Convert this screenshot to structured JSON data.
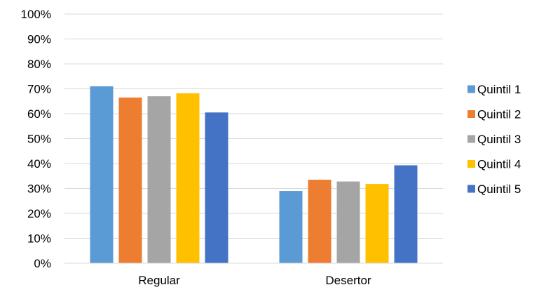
{
  "chart_data": {
    "type": "bar",
    "categories": [
      "Regular",
      "Desertor"
    ],
    "series": [
      {
        "name": "Quintil 1",
        "color": "#5B9BD5",
        "values": [
          71.0,
          29.0
        ]
      },
      {
        "name": "Quintil 2",
        "color": "#ED7D31",
        "values": [
          66.5,
          33.5
        ]
      },
      {
        "name": "Quintil 3",
        "color": "#A5A5A5",
        "values": [
          67.0,
          32.8
        ]
      },
      {
        "name": "Quintil 4",
        "color": "#FFC000",
        "values": [
          68.2,
          31.8
        ]
      },
      {
        "name": "Quintil 5",
        "color": "#4472C4",
        "values": [
          60.5,
          39.3
        ]
      }
    ],
    "yticks": [
      "0%",
      "10%",
      "20%",
      "30%",
      "40%",
      "50%",
      "60%",
      "70%",
      "80%",
      "90%",
      "100%"
    ],
    "ylim": [
      0,
      100
    ],
    "grid": true,
    "legend_position": "right",
    "title": "",
    "xlabel": "",
    "ylabel": ""
  }
}
